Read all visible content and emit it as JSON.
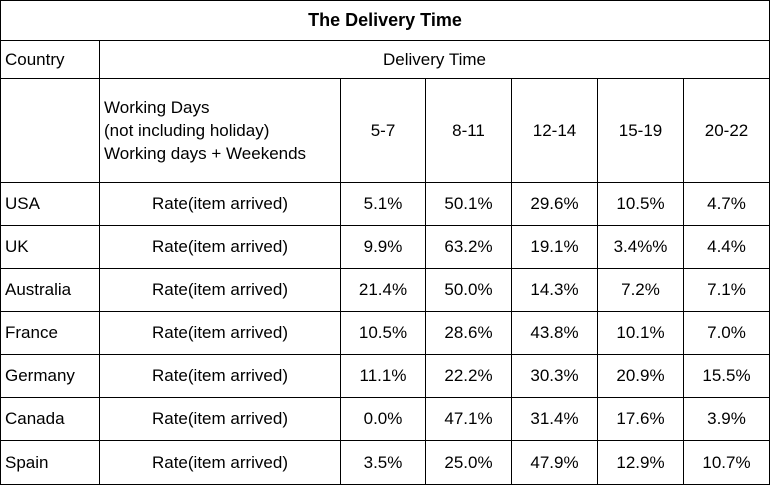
{
  "title": "The Delivery Time",
  "header": {
    "country": "Country",
    "group": "Delivery Time"
  },
  "subheader": {
    "label_lines": [
      "Working Days",
      "(not including holiday)",
      "Working days + Weekends"
    ],
    "ranges": [
      "5-7",
      "8-11",
      "12-14",
      "15-19",
      "20-22"
    ]
  },
  "rows": [
    [
      "USA",
      "Rate(item arrived)",
      "5.1%",
      "50.1%",
      "29.6%",
      "10.5%",
      "4.7%"
    ],
    [
      "UK",
      "Rate(item arrived)",
      "9.9%",
      "63.2%",
      "19.1%",
      "3.4%%",
      "4.4%"
    ],
    [
      "Australia",
      "Rate(item arrived)",
      "21.4%",
      "50.0%",
      "14.3%",
      "7.2%",
      "7.1%"
    ],
    [
      "France",
      "Rate(item arrived)",
      "10.5%",
      "28.6%",
      "43.8%",
      "10.1%",
      "7.0%"
    ],
    [
      "Germany",
      "Rate(item arrived)",
      "11.1%",
      "22.2%",
      "30.3%",
      "20.9%",
      "15.5%"
    ],
    [
      "Canada",
      "Rate(item arrived)",
      "0.0%",
      "47.1%",
      "31.4%",
      "17.6%",
      "3.9%"
    ],
    [
      "Spain",
      "Rate(item arrived)",
      "3.5%",
      "25.0%",
      "47.9%",
      "12.9%",
      "10.7%"
    ]
  ]
}
